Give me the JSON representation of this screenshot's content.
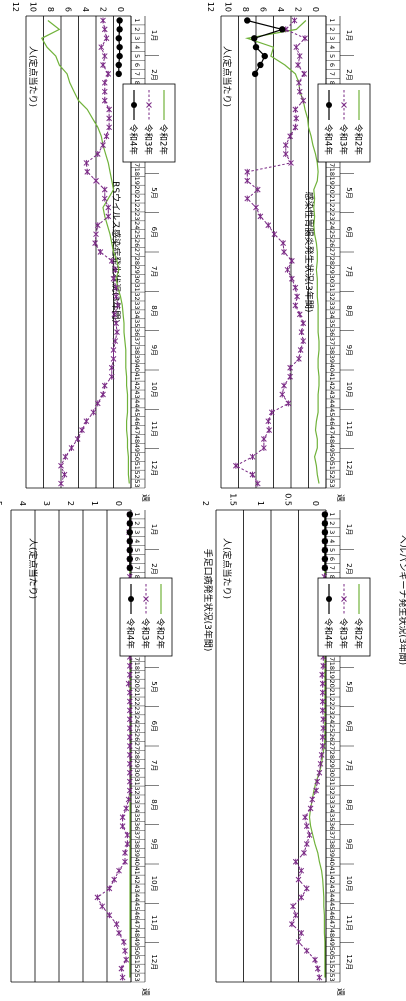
{
  "page": {
    "week_label": "週",
    "y_axis_label": "人(定点当たり)"
  },
  "months": [
    "1月",
    "2月",
    "3月",
    "4月",
    "5月",
    "6月",
    "7月",
    "8月",
    "9月",
    "10月",
    "11月",
    "12月"
  ],
  "colors": {
    "r2": "#70b23a",
    "r3": "#7a2a85",
    "r4": "#000000"
  },
  "chart_data": [
    {
      "type": "line",
      "title": "RSウイルス感染症発生状況(3年間)",
      "xlabel": "週",
      "ylabel": "人(定点当たり)",
      "ylim": [
        0,
        12
      ],
      "yticks": [
        "0",
        "2",
        "4",
        "6",
        "8",
        "10",
        "12"
      ],
      "x": [
        1,
        2,
        3,
        4,
        5,
        6,
        7,
        8,
        9,
        10,
        11,
        12,
        13,
        14,
        15,
        16,
        17,
        18,
        19,
        20,
        21,
        22,
        23,
        24,
        25,
        26,
        27,
        28,
        29,
        30,
        31,
        32,
        33,
        34,
        35,
        36,
        37,
        38,
        39,
        40,
        41,
        42,
        43,
        44,
        45,
        46,
        47,
        48,
        49,
        50,
        51,
        52,
        53
      ],
      "legend_position": "top-right",
      "series": [
        {
          "name": "令和2年",
          "key": "r2",
          "values": [
            9.5,
            8.2,
            10.2,
            9.6,
            8.6,
            8.2,
            7.3,
            7.0,
            6.5,
            6.0,
            5.0,
            4.4,
            3.8,
            3.4,
            3.2,
            2.9,
            2.6,
            2.4,
            2.2,
            2.0,
            2.6,
            3.2,
            3.0,
            2.7,
            2.4,
            2.2,
            2.0,
            1.6,
            1.4,
            1.7,
            1.5,
            1.2,
            1.0,
            0.9,
            0.8,
            0.8,
            0.7,
            0.6,
            0.6,
            0.6,
            0.5,
            0.5,
            0.4,
            0.4,
            0.4,
            0.5,
            0.5,
            0.4,
            0.4,
            0.3,
            0.3,
            0.3,
            0.2
          ]
        },
        {
          "name": "令和3年",
          "key": "r3",
          "values": [
            3.2,
            3.0,
            2.8,
            3.4,
            3.0,
            3.2,
            2.6,
            3.0,
            3.0,
            3.0,
            2.5,
            2.5,
            2.5,
            2.8,
            3.2,
            3.8,
            5.1,
            5.0,
            4.0,
            3.0,
            3.0,
            2.6,
            2.6,
            3.8,
            4.0,
            4.1,
            3.5,
            2.2,
            1.8,
            2.0,
            1.7,
            1.7,
            1.5,
            1.9,
            1.7,
            1.6,
            1.8,
            2.0,
            2.0,
            2.2,
            2.2,
            3.0,
            3.2,
            3.8,
            4.3,
            5.1,
            5.6,
            6.1,
            6.8,
            7.5,
            8.0,
            7.6,
            8.0
          ]
        },
        {
          "name": "令和4年",
          "key": "r4",
          "values": [
            1.3,
            1.3,
            1.4,
            1.3,
            1.3,
            1.4,
            1.4,
            null,
            null,
            null,
            null,
            null,
            null,
            null,
            null,
            null,
            null,
            null,
            null,
            null,
            null,
            null,
            null,
            null,
            null,
            null,
            null,
            null,
            null,
            null,
            null,
            null,
            null,
            null,
            null,
            null,
            null,
            null,
            null,
            null,
            null,
            null,
            null,
            null,
            null,
            null,
            null,
            null,
            null,
            null,
            null,
            null,
            null
          ]
        }
      ]
    },
    {
      "type": "line",
      "title": "感染性胃腸炎発生状況(3年間)",
      "xlabel": "週",
      "ylabel": "人(定点当たり)",
      "ylim": [
        0,
        12
      ],
      "yticks": [
        "0",
        "2",
        "4",
        "6",
        "8",
        "10",
        "12"
      ],
      "x": [
        1,
        2,
        3,
        4,
        5,
        6,
        7,
        8,
        9,
        10,
        11,
        12,
        13,
        14,
        15,
        16,
        17,
        18,
        19,
        20,
        21,
        22,
        23,
        24,
        25,
        26,
        27,
        28,
        29,
        30,
        31,
        32,
        33,
        34,
        35,
        36,
        37,
        38,
        39,
        40,
        41,
        42,
        43,
        44,
        45,
        46,
        47,
        48,
        49,
        50,
        51,
        52,
        53
      ],
      "legend_position": "top-right",
      "series": [
        {
          "name": "令和2年",
          "key": "r2",
          "values": [
            2.3,
            3.4,
            9.0,
            6.0,
            6.3,
            4.7,
            3.5,
            3.1,
            3.0,
            2.6,
            2.4,
            2.1,
            2.0,
            1.7,
            1.5,
            1.2,
            1.0,
            0.9,
            1.0,
            1.4,
            1.3,
            1.4,
            1.3,
            1.4,
            1.3,
            1.1,
            1.0,
            1.0,
            1.1,
            1.0,
            1.0,
            1.0,
            0.9,
            0.9,
            0.9,
            0.9,
            0.8,
            0.8,
            0.9,
            0.9,
            0.8,
            0.8,
            0.9,
            0.9,
            0.9,
            1.1,
            1.2,
            1.0,
            1.0,
            1.3,
            1.1,
            1.0,
            0.8
          ]
        },
        {
          "name": "令和3年",
          "key": "r3",
          "values": [
            3.6,
            4.6,
            2.4,
            3.4,
            3.0,
            3.2,
            2.5,
            3.1,
            3.0,
            2.6,
            3.5,
            3.4,
            3.5,
            4.1,
            4.6,
            4.6,
            4.0,
            9.0,
            9.0,
            7.8,
            9.0,
            8.0,
            7.5,
            6.6,
            5.9,
            4.9,
            4.8,
            3.9,
            4.4,
            3.9,
            3.5,
            3.3,
            3.5,
            3.0,
            2.6,
            2.8,
            2.6,
            2.9,
            3.1,
            4.1,
            4.1,
            4.8,
            5.0,
            4.3,
            6.2,
            6.6,
            6.5,
            7.1,
            7.1,
            8.4,
            10.3,
            8.4,
            7.8
          ]
        },
        {
          "name": "令和4年",
          "key": "r4",
          "values": [
            9.0,
            5.0,
            8.2,
            8.0,
            7.0,
            7.5,
            8.1,
            null,
            null,
            null,
            null,
            null,
            null,
            null,
            null,
            null,
            null,
            null,
            null,
            null,
            null,
            null,
            null,
            null,
            null,
            null,
            null,
            null,
            null,
            null,
            null,
            null,
            null,
            null,
            null,
            null,
            null,
            null,
            null,
            null,
            null,
            null,
            null,
            null,
            null,
            null,
            null,
            null,
            null,
            null,
            null,
            null,
            null
          ]
        }
      ]
    },
    {
      "type": "line",
      "title": "手足口病発生状況(3年間)",
      "xlabel": "週",
      "ylabel": "人(定点当たり)",
      "ylim": [
        0,
        5
      ],
      "yticks": [
        "0",
        "1",
        "2",
        "3",
        "4",
        "5"
      ],
      "x": [
        1,
        2,
        3,
        4,
        5,
        6,
        7,
        8,
        9,
        10,
        11,
        12,
        13,
        14,
        15,
        16,
        17,
        18,
        19,
        20,
        21,
        22,
        23,
        24,
        25,
        26,
        27,
        28,
        29,
        30,
        31,
        32,
        33,
        34,
        35,
        36,
        37,
        38,
        39,
        40,
        41,
        42,
        43,
        44,
        45,
        46,
        47,
        48,
        49,
        50,
        51,
        52,
        53
      ],
      "legend_position": "top-right",
      "series": [
        {
          "name": "令和2年",
          "key": "r2",
          "values": [
            0.05,
            0.05,
            0.05,
            0.05,
            0.05,
            0.05,
            0.05,
            0.05,
            0.05,
            0.05,
            0.05,
            0.05,
            0.04,
            0.04,
            0.04,
            0.04,
            0.04,
            0.04,
            0.04,
            0.04,
            0.04,
            0.04,
            0.04,
            0.04,
            0.04,
            0.04,
            0.04,
            0.04,
            0.04,
            0.04,
            0.04,
            0.04,
            0.04,
            0.04,
            0.04,
            0.04,
            0.04,
            0.04,
            0.04,
            0.04,
            0.04,
            0.04,
            0.04,
            0.04,
            0.04,
            0.04,
            0.04,
            0.04,
            0.04,
            0.04,
            0.05,
            0.05,
            0.05
          ]
        },
        {
          "name": "令和3年",
          "key": "r3",
          "values": [
            0.05,
            0.05,
            0.08,
            0.05,
            0.05,
            0.05,
            0.05,
            0.05,
            0.1,
            0.05,
            0.05,
            0.05,
            0.05,
            0.05,
            0.05,
            0.05,
            0.05,
            0.05,
            0.05,
            0.1,
            0.05,
            0.05,
            0.05,
            0.05,
            0.05,
            0.05,
            0.05,
            0.05,
            0.05,
            0.05,
            0.05,
            0.05,
            0.1,
            0.2,
            0.35,
            0.35,
            0.15,
            0.15,
            0.25,
            0.25,
            0.5,
            0.7,
            0.9,
            1.4,
            1.2,
            0.9,
            0.6,
            0.5,
            0.3,
            0.25,
            0.2,
            0.4,
            0.35
          ]
        },
        {
          "name": "令和4年",
          "key": "r4",
          "values": [
            0.05,
            0.05,
            0.05,
            0.05,
            0.05,
            0.05,
            0.05,
            null,
            null,
            null,
            null,
            null,
            null,
            null,
            null,
            null,
            null,
            null,
            null,
            null,
            null,
            null,
            null,
            null,
            null,
            null,
            null,
            null,
            null,
            null,
            null,
            null,
            null,
            null,
            null,
            null,
            null,
            null,
            null,
            null,
            null,
            null,
            null,
            null,
            null,
            null,
            null,
            null,
            null,
            null,
            null,
            null,
            null
          ]
        }
      ]
    },
    {
      "type": "line",
      "title": "ヘルパンギーナ発生状況(3年間)",
      "xlabel": "週",
      "ylabel": "人(定点当たり)",
      "ylim": [
        0,
        2
      ],
      "yticks": [
        "0",
        "0.5",
        "1",
        "1.5",
        "2"
      ],
      "x": [
        1,
        2,
        3,
        4,
        5,
        6,
        7,
        8,
        9,
        10,
        11,
        12,
        13,
        14,
        15,
        16,
        17,
        18,
        19,
        20,
        21,
        22,
        23,
        24,
        25,
        26,
        27,
        28,
        29,
        30,
        31,
        32,
        33,
        34,
        35,
        36,
        37,
        38,
        39,
        40,
        41,
        42,
        43,
        44,
        45,
        46,
        47,
        48,
        49,
        50,
        51,
        52,
        53
      ],
      "legend_position": "top-right",
      "series": [
        {
          "name": "令和2年",
          "key": "r2",
          "values": [
            0.02,
            0.02,
            0.02,
            0.02,
            0.02,
            0.02,
            0.02,
            0.02,
            0.02,
            0.02,
            0.02,
            0.02,
            0.02,
            0.02,
            0.02,
            0.02,
            0.02,
            0.02,
            0.02,
            0.02,
            0.02,
            0.02,
            0.02,
            0.02,
            0.02,
            0.02,
            0.03,
            0.06,
            0.08,
            0.12,
            0.18,
            0.22,
            0.25,
            0.28,
            0.3,
            0.28,
            0.24,
            0.2,
            0.15,
            0.12,
            0.08,
            0.06,
            0.05,
            0.04,
            0.04,
            0.03,
            0.03,
            0.03,
            0.02,
            0.02,
            0.02,
            0.02,
            0.02
          ]
        },
        {
          "name": "令和3年",
          "key": "r3",
          "values": [
            0.02,
            0.02,
            0.02,
            0.02,
            0.02,
            0.02,
            0.02,
            0.03,
            0.05,
            0.05,
            0.05,
            0.05,
            0.05,
            0.05,
            0.05,
            0.06,
            0.05,
            0.05,
            0.07,
            0.06,
            0.06,
            0.06,
            0.06,
            0.05,
            0.05,
            0.06,
            0.06,
            0.08,
            0.1,
            0.12,
            0.16,
            0.18,
            0.25,
            0.28,
            0.38,
            0.35,
            0.3,
            0.35,
            0.4,
            0.55,
            0.45,
            0.5,
            0.35,
            0.45,
            0.6,
            0.55,
            0.62,
            0.45,
            0.5,
            0.35,
            0.2,
            0.15,
            0.12
          ]
        },
        {
          "name": "令和4年",
          "key": "r4",
          "values": [
            0.02,
            0.02,
            0.02,
            0.02,
            0.02,
            0.02,
            0.02,
            null,
            null,
            null,
            null,
            null,
            null,
            null,
            null,
            null,
            null,
            null,
            null,
            null,
            null,
            null,
            null,
            null,
            null,
            null,
            null,
            null,
            null,
            null,
            null,
            null,
            null,
            null,
            null,
            null,
            null,
            null,
            null,
            null,
            null,
            null,
            null,
            null,
            null,
            null,
            null,
            null,
            null,
            null,
            null,
            null,
            null
          ]
        }
      ]
    }
  ]
}
